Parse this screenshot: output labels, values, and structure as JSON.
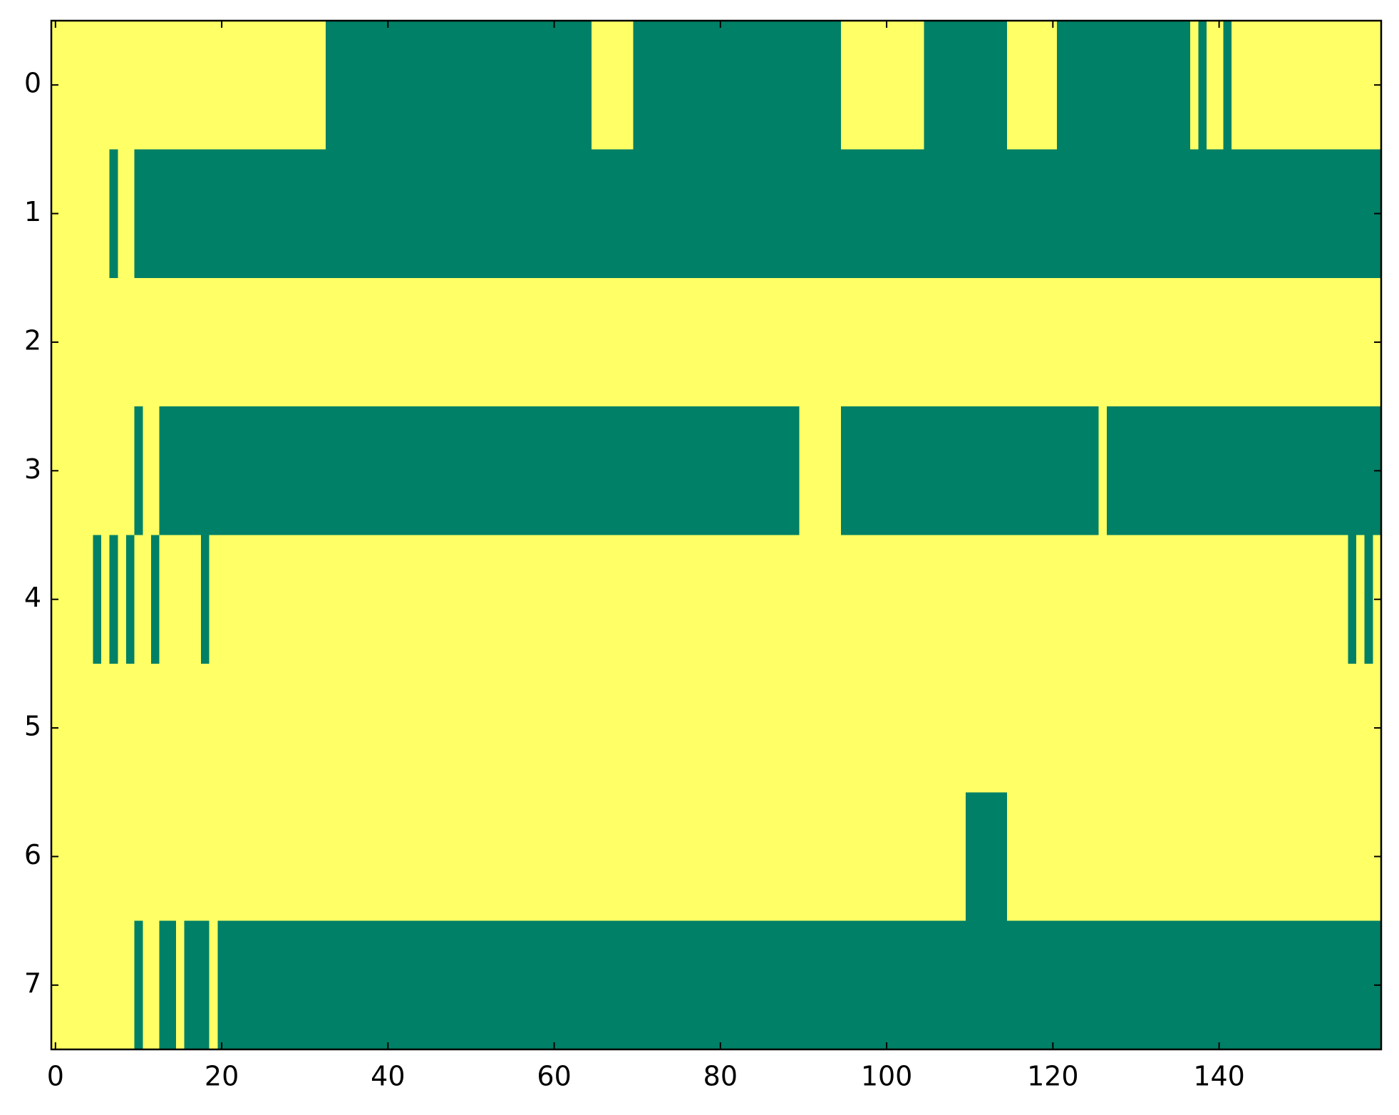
{
  "chart_data": {
    "type": "heatmap",
    "xlim": [
      -0.5,
      159.5
    ],
    "ylim": [
      7.5,
      -0.5
    ],
    "xticks": [
      0,
      20,
      40,
      60,
      80,
      100,
      120,
      140
    ],
    "yticks": [
      0,
      1,
      2,
      3,
      4,
      5,
      6,
      7
    ],
    "colormap": [
      "#ffff66",
      "#008066"
    ],
    "values": [
      [
        0,
        0,
        0,
        0,
        0,
        0,
        0,
        0,
        0,
        0,
        0,
        0,
        0,
        0,
        0,
        0,
        0,
        0,
        0,
        0,
        0,
        0,
        0,
        0,
        0,
        0,
        0,
        0,
        0,
        0,
        0,
        0,
        0,
        1,
        1,
        1,
        1,
        1,
        1,
        1,
        1,
        1,
        1,
        1,
        1,
        1,
        1,
        1,
        1,
        1,
        1,
        1,
        1,
        1,
        1,
        1,
        1,
        1,
        1,
        1,
        1,
        1,
        1,
        1,
        1,
        0,
        0,
        0,
        0,
        0,
        1,
        1,
        1,
        1,
        1,
        1,
        1,
        1,
        1,
        1,
        1,
        1,
        1,
        1,
        1,
        1,
        1,
        1,
        1,
        1,
        1,
        1,
        1,
        1,
        1,
        0,
        0,
        0,
        0,
        0,
        0,
        0,
        0,
        0,
        0,
        1,
        1,
        1,
        1,
        1,
        1,
        1,
        1,
        1,
        1,
        0,
        0,
        0,
        0,
        0,
        0,
        1,
        1,
        1,
        1,
        1,
        1,
        1,
        1,
        1,
        1,
        1,
        1,
        1,
        1,
        1,
        1,
        0,
        1,
        0,
        0,
        1,
        0,
        0,
        0,
        0,
        0,
        0,
        0,
        0,
        0,
        0,
        0,
        0,
        0,
        0,
        0,
        0,
        0,
        0
      ],
      [
        0,
        0,
        0,
        0,
        0,
        0,
        0,
        1,
        0,
        0,
        1,
        1,
        1,
        1,
        1,
        1,
        1,
        1,
        1,
        1,
        1,
        1,
        1,
        1,
        1,
        1,
        1,
        1,
        1,
        1,
        1,
        1,
        1,
        1,
        1,
        1,
        1,
        1,
        1,
        1,
        1,
        1,
        1,
        1,
        1,
        1,
        1,
        1,
        1,
        1,
        1,
        1,
        1,
        1,
        1,
        1,
        1,
        1,
        1,
        1,
        1,
        1,
        1,
        1,
        1,
        1,
        1,
        1,
        1,
        1,
        1,
        1,
        1,
        1,
        1,
        1,
        1,
        1,
        1,
        1,
        1,
        1,
        1,
        1,
        1,
        1,
        1,
        1,
        1,
        1,
        1,
        1,
        1,
        1,
        1,
        1,
        1,
        1,
        1,
        1,
        1,
        1,
        1,
        1,
        1,
        1,
        1,
        1,
        1,
        1,
        1,
        1,
        1,
        1,
        1,
        1,
        1,
        1,
        1,
        1,
        1,
        1,
        1,
        1,
        1,
        1,
        1,
        1,
        1,
        1,
        1,
        1,
        1,
        1,
        1,
        1,
        1,
        1,
        1,
        1,
        1,
        1,
        1,
        1,
        1,
        1,
        1,
        1,
        1,
        1,
        1,
        1,
        1,
        1,
        1,
        1,
        1,
        1,
        1,
        1
      ],
      [
        0,
        0,
        0,
        0,
        0,
        0,
        0,
        0,
        0,
        0,
        0,
        0,
        0,
        0,
        0,
        0,
        0,
        0,
        0,
        0,
        0,
        0,
        0,
        0,
        0,
        0,
        0,
        0,
        0,
        0,
        0,
        0,
        0,
        0,
        0,
        0,
        0,
        0,
        0,
        0,
        0,
        0,
        0,
        0,
        0,
        0,
        0,
        0,
        0,
        0,
        0,
        0,
        0,
        0,
        0,
        0,
        0,
        0,
        0,
        0,
        0,
        0,
        0,
        0,
        0,
        0,
        0,
        0,
        0,
        0,
        0,
        0,
        0,
        0,
        0,
        0,
        0,
        0,
        0,
        0,
        0,
        0,
        0,
        0,
        0,
        0,
        0,
        0,
        0,
        0,
        0,
        0,
        0,
        0,
        0,
        0,
        0,
        0,
        0,
        0,
        0,
        0,
        0,
        0,
        0,
        0,
        0,
        0,
        0,
        0,
        0,
        0,
        0,
        0,
        0,
        0,
        0,
        0,
        0,
        0,
        0,
        0,
        0,
        0,
        0,
        0,
        0,
        0,
        0,
        0,
        0,
        0,
        0,
        0,
        0,
        0,
        0,
        0,
        0,
        0,
        0,
        0,
        0,
        0,
        0,
        0,
        0,
        0,
        0,
        0,
        0,
        0,
        0,
        0,
        0,
        0,
        0,
        0,
        0,
        0
      ],
      [
        0,
        0,
        0,
        0,
        0,
        0,
        0,
        0,
        0,
        0,
        1,
        0,
        0,
        1,
        1,
        1,
        1,
        1,
        1,
        1,
        1,
        1,
        1,
        1,
        1,
        1,
        1,
        1,
        1,
        1,
        1,
        1,
        1,
        1,
        1,
        1,
        1,
        1,
        1,
        1,
        1,
        1,
        1,
        1,
        1,
        1,
        1,
        1,
        1,
        1,
        1,
        1,
        1,
        1,
        1,
        1,
        1,
        1,
        1,
        1,
        1,
        1,
        1,
        1,
        1,
        1,
        1,
        1,
        1,
        1,
        1,
        1,
        1,
        1,
        1,
        1,
        1,
        1,
        1,
        1,
        1,
        1,
        1,
        1,
        1,
        1,
        1,
        1,
        1,
        1,
        0,
        0,
        0,
        0,
        0,
        1,
        1,
        1,
        1,
        1,
        1,
        1,
        1,
        1,
        1,
        1,
        1,
        1,
        1,
        1,
        1,
        1,
        1,
        1,
        1,
        1,
        1,
        1,
        1,
        1,
        1,
        1,
        1,
        1,
        1,
        1,
        0,
        1,
        1,
        1,
        1,
        1,
        1,
        1,
        1,
        1,
        1,
        1,
        1,
        1,
        1,
        1,
        1,
        1,
        1,
        1,
        1,
        1,
        1,
        1,
        1,
        1,
        1,
        1,
        1,
        1,
        1,
        1,
        1,
        1
      ],
      [
        0,
        0,
        0,
        0,
        0,
        1,
        0,
        1,
        0,
        1,
        0,
        0,
        1,
        0,
        0,
        0,
        0,
        0,
        1,
        0,
        0,
        0,
        0,
        0,
        0,
        0,
        0,
        0,
        0,
        0,
        0,
        0,
        0,
        0,
        0,
        0,
        0,
        0,
        0,
        0,
        0,
        0,
        0,
        0,
        0,
        0,
        0,
        0,
        0,
        0,
        0,
        0,
        0,
        0,
        0,
        0,
        0,
        0,
        0,
        0,
        0,
        0,
        0,
        0,
        0,
        0,
        0,
        0,
        0,
        0,
        0,
        0,
        0,
        0,
        0,
        0,
        0,
        0,
        0,
        0,
        0,
        0,
        0,
        0,
        0,
        0,
        0,
        0,
        0,
        0,
        0,
        0,
        0,
        0,
        0,
        0,
        0,
        0,
        0,
        0,
        0,
        0,
        0,
        0,
        0,
        0,
        0,
        0,
        0,
        0,
        0,
        0,
        0,
        0,
        0,
        0,
        0,
        0,
        0,
        0,
        0,
        0,
        0,
        0,
        0,
        0,
        0,
        0,
        0,
        0,
        0,
        0,
        0,
        0,
        0,
        0,
        0,
        0,
        0,
        0,
        0,
        0,
        0,
        0,
        0,
        0,
        0,
        0,
        0,
        0,
        0,
        0,
        0,
        0,
        0,
        0,
        1,
        0,
        1,
        0
      ],
      [
        0,
        0,
        0,
        0,
        0,
        0,
        0,
        0,
        0,
        0,
        0,
        0,
        0,
        0,
        0,
        0,
        0,
        0,
        0,
        0,
        0,
        0,
        0,
        0,
        0,
        0,
        0,
        0,
        0,
        0,
        0,
        0,
        0,
        0,
        0,
        0,
        0,
        0,
        0,
        0,
        0,
        0,
        0,
        0,
        0,
        0,
        0,
        0,
        0,
        0,
        0,
        0,
        0,
        0,
        0,
        0,
        0,
        0,
        0,
        0,
        0,
        0,
        0,
        0,
        0,
        0,
        0,
        0,
        0,
        0,
        0,
        0,
        0,
        0,
        0,
        0,
        0,
        0,
        0,
        0,
        0,
        0,
        0,
        0,
        0,
        0,
        0,
        0,
        0,
        0,
        0,
        0,
        0,
        0,
        0,
        0,
        0,
        0,
        0,
        0,
        0,
        0,
        0,
        0,
        0,
        0,
        0,
        0,
        0,
        0,
        0,
        0,
        0,
        0,
        0,
        0,
        0,
        0,
        0,
        0,
        0,
        0,
        0,
        0,
        0,
        0,
        0,
        0,
        0,
        0,
        0,
        0,
        0,
        0,
        0,
        0,
        0,
        0,
        0,
        0,
        0,
        0,
        0,
        0,
        0,
        0,
        0,
        0,
        0,
        0,
        0,
        0,
        0,
        0,
        0,
        0,
        0,
        0,
        0,
        0
      ],
      [
        0,
        0,
        0,
        0,
        0,
        0,
        0,
        0,
        0,
        0,
        0,
        0,
        0,
        0,
        0,
        0,
        0,
        0,
        0,
        0,
        0,
        0,
        0,
        0,
        0,
        0,
        0,
        0,
        0,
        0,
        0,
        0,
        0,
        0,
        0,
        0,
        0,
        0,
        0,
        0,
        0,
        0,
        0,
        0,
        0,
        0,
        0,
        0,
        0,
        0,
        0,
        0,
        0,
        0,
        0,
        0,
        0,
        0,
        0,
        0,
        0,
        0,
        0,
        0,
        0,
        0,
        0,
        0,
        0,
        0,
        0,
        0,
        0,
        0,
        0,
        0,
        0,
        0,
        0,
        0,
        0,
        0,
        0,
        0,
        0,
        0,
        0,
        0,
        0,
        0,
        0,
        0,
        0,
        0,
        0,
        0,
        0,
        0,
        0,
        0,
        0,
        0,
        0,
        0,
        0,
        0,
        0,
        0,
        0,
        0,
        1,
        1,
        1,
        1,
        1,
        0,
        0,
        0,
        0,
        0,
        0,
        0,
        0,
        0,
        0,
        0,
        0,
        0,
        0,
        0,
        0,
        0,
        0,
        0,
        0,
        0,
        0,
        0,
        0,
        0,
        0,
        0,
        0,
        0,
        0,
        0,
        0,
        0,
        0,
        0,
        0,
        0,
        0,
        0,
        0,
        0,
        0,
        0,
        0,
        0
      ],
      [
        0,
        0,
        0,
        0,
        0,
        0,
        0,
        0,
        0,
        0,
        1,
        0,
        0,
        1,
        1,
        0,
        1,
        1,
        1,
        0,
        1,
        1,
        1,
        1,
        1,
        1,
        1,
        1,
        1,
        1,
        1,
        1,
        1,
        1,
        1,
        1,
        1,
        1,
        1,
        1,
        1,
        1,
        1,
        1,
        1,
        1,
        1,
        1,
        1,
        1,
        1,
        1,
        1,
        1,
        1,
        1,
        1,
        1,
        1,
        1,
        1,
        1,
        1,
        1,
        1,
        1,
        1,
        1,
        1,
        1,
        1,
        1,
        1,
        1,
        1,
        1,
        1,
        1,
        1,
        1,
        1,
        1,
        1,
        1,
        1,
        1,
        1,
        1,
        1,
        1,
        1,
        1,
        1,
        1,
        1,
        1,
        1,
        1,
        1,
        1,
        1,
        1,
        1,
        1,
        1,
        1,
        1,
        1,
        1,
        1,
        1,
        1,
        1,
        1,
        1,
        1,
        1,
        1,
        1,
        1,
        1,
        1,
        1,
        1,
        1,
        1,
        1,
        1,
        1,
        1,
        1,
        1,
        1,
        1,
        1,
        1,
        1,
        1,
        1,
        1,
        1,
        1,
        1,
        1,
        1,
        1,
        1,
        1,
        1,
        1,
        1,
        1,
        1,
        1,
        1,
        1,
        1,
        1,
        1,
        1
      ]
    ]
  }
}
